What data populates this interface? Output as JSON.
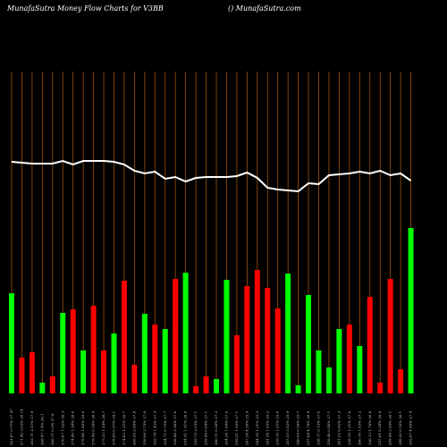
{
  "chart_data": {
    "type": "bar",
    "title": "MunafaSutra  Money Flow  Charts for V3BB",
    "subtitle": "() MunafaSutra.com",
    "ylim": [
      0,
      440
    ],
    "categories": [
      "261.67 0.71% 27.47",
      "271.42 3.02% 28.14",
      "263.11 2.11% 27.9",
      "268.47 1.4% 28.1",
      "266.71 0.3% 27.8",
      "270.67 1.52% 28.3",
      "274.40 1.38% 28.6",
      "278.98 1.66% 29.0",
      "278.49 0.18% 28.9",
      "275.32 1.14% 28.7",
      "278.00 0.97% 29.1",
      "274.63 1.21% 28.7",
      "266.39 2.99% 27.8",
      "259.06 2.75% 27.0",
      "262.74 1.42% 27.5",
      "264.71 0.75% 27.7",
      "258.40 2.38% 27.0",
      "254.51 1.51% 26.6",
      "259.72 2.05% 27.1",
      "259.49 0.09% 27.1",
      "260.11 0.24% 27.2",
      "264.38 1.64% 27.6",
      "259.21 1.95% 27.1",
      "247.34 4.58% 25.9",
      "244.10 1.31% 25.5",
      "241.54 1.05% 25.2",
      "239.10 1.01% 25.0",
      "247.55 3.53% 25.9",
      "246.09 0.59% 25.7",
      "257.84 4.78% 26.9",
      "258.17 0.13% 27.0",
      "259.40 0.48% 27.1",
      "261.52 0.82% 27.3",
      "258.10 1.31% 27.0",
      "260.76 1.03% 27.2",
      "256.13 1.78% 26.8",
      "257.01 0.34% 26.9",
      "249.48 2.93% 26.1",
      "249.93 0.18% 26.1",
      "262.07 4.86% 27.4"
    ],
    "values": [
      112,
      40,
      46,
      12,
      19,
      90,
      94,
      48,
      98,
      48,
      67,
      126,
      32,
      89,
      77,
      72,
      128,
      135,
      8,
      19,
      16,
      127,
      65,
      120,
      138,
      118,
      95,
      134,
      9,
      110,
      48,
      29,
      72,
      77,
      53,
      108,
      12,
      128,
      27,
      185
    ],
    "colors": [
      "#00ff00",
      "#ff0000",
      "#ff0000",
      "#00ff00",
      "#ff0000",
      "#00ff00",
      "#ff0000",
      "#00ff00",
      "#ff0000",
      "#ff0000",
      "#00ff00",
      "#ff0000",
      "#ff0000",
      "#00ff00",
      "#ff0000",
      "#00ff00",
      "#ff0000",
      "#00ff00",
      "#ff0000",
      "#ff0000",
      "#00ff00",
      "#00ff00",
      "#ff0000",
      "#ff0000",
      "#ff0000",
      "#ff0000",
      "#ff0000",
      "#00ff00",
      "#00ff00",
      "#00ff00",
      "#00ff00",
      "#00ff00",
      "#00ff00",
      "#ff0000",
      "#00ff00",
      "#ff0000",
      "#ff0000",
      "#ff0000",
      "#ff0000",
      "#00ff00"
    ],
    "line": {
      "color": "#ffffff",
      "values": [
        259,
        258,
        257,
        257,
        257,
        260,
        256,
        260,
        260,
        260,
        259,
        256,
        249,
        246,
        248,
        240,
        242,
        237,
        241,
        242,
        242,
        242,
        243,
        247,
        241,
        230,
        228,
        227,
        226,
        235,
        234,
        244,
        245,
        246,
        248,
        246,
        249,
        244,
        246,
        238
      ]
    }
  }
}
